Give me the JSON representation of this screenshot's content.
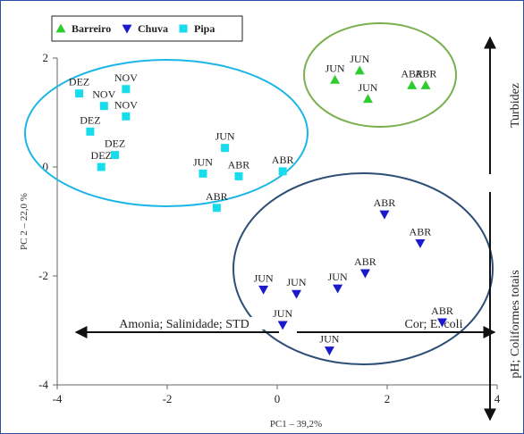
{
  "chart_data": {
    "type": "scatter",
    "title": "",
    "xlabel": "PC1 – 39,2%",
    "ylabel": "PC 2 – 22,0 %",
    "xlim": [
      -4,
      4
    ],
    "ylim": [
      -4,
      2
    ],
    "xticks": [
      "-4",
      "-2",
      "0",
      "2",
      "4"
    ],
    "yticks": [
      "2",
      "0",
      "-2",
      "-4"
    ],
    "legend": {
      "placement": "top-left"
    },
    "series": [
      {
        "name": "Barreiro",
        "color": "#2ecc2e",
        "marker": "triangle-up",
        "points": [
          {
            "x": 1.05,
            "y": 1.6,
            "label": "JUN"
          },
          {
            "x": 1.5,
            "y": 1.77,
            "label": "JUN"
          },
          {
            "x": 1.65,
            "y": 1.25,
            "label": "JUN"
          },
          {
            "x": 2.45,
            "y": 1.5,
            "label": "ABR"
          },
          {
            "x": 2.7,
            "y": 1.5,
            "label": "ABR"
          }
        ]
      },
      {
        "name": "Chuva",
        "color": "#1a1acc",
        "marker": "triangle-down",
        "points": [
          {
            "x": 1.95,
            "y": -0.87,
            "label": "ABR"
          },
          {
            "x": 2.6,
            "y": -1.4,
            "label": "ABR"
          },
          {
            "x": 1.6,
            "y": -1.95,
            "label": "ABR"
          },
          {
            "x": 1.1,
            "y": -2.23,
            "label": "JUN"
          },
          {
            "x": 0.35,
            "y": -2.33,
            "label": "JUN"
          },
          {
            "x": -0.25,
            "y": -2.25,
            "label": "JUN"
          },
          {
            "x": 0.1,
            "y": -2.9,
            "label": "JUN"
          },
          {
            "x": 0.95,
            "y": -3.37,
            "label": "JUN"
          },
          {
            "x": 3.0,
            "y": -2.85,
            "label": "ABR"
          }
        ]
      },
      {
        "name": "Pipa",
        "color": "#16dcec",
        "marker": "square",
        "points": [
          {
            "x": -3.6,
            "y": 1.35,
            "label": "DEZ"
          },
          {
            "x": -2.75,
            "y": 1.43,
            "label": "NOV"
          },
          {
            "x": -3.15,
            "y": 1.12,
            "label": "NOV"
          },
          {
            "x": -2.75,
            "y": 0.93,
            "label": "NOV"
          },
          {
            "x": -3.4,
            "y": 0.65,
            "label": "DEZ"
          },
          {
            "x": -2.95,
            "y": 0.22,
            "label": "DEZ"
          },
          {
            "x": -3.2,
            "y": 0.0,
            "label": "DEZ"
          },
          {
            "x": -0.95,
            "y": 0.35,
            "label": "JUN"
          },
          {
            "x": -1.35,
            "y": -0.12,
            "label": "JUN"
          },
          {
            "x": -0.7,
            "y": -0.17,
            "label": "ABR"
          },
          {
            "x": 0.1,
            "y": -0.08,
            "label": "ABR"
          },
          {
            "x": -1.1,
            "y": -0.75,
            "label": "ABR"
          }
        ]
      }
    ],
    "annotations": {
      "right_top": "Turbidez",
      "right_bottom": "pH; Coliformes totais",
      "bottom_left": "Amonia; Salinidade; STD",
      "bottom_right": "Cor; E. coli"
    }
  }
}
